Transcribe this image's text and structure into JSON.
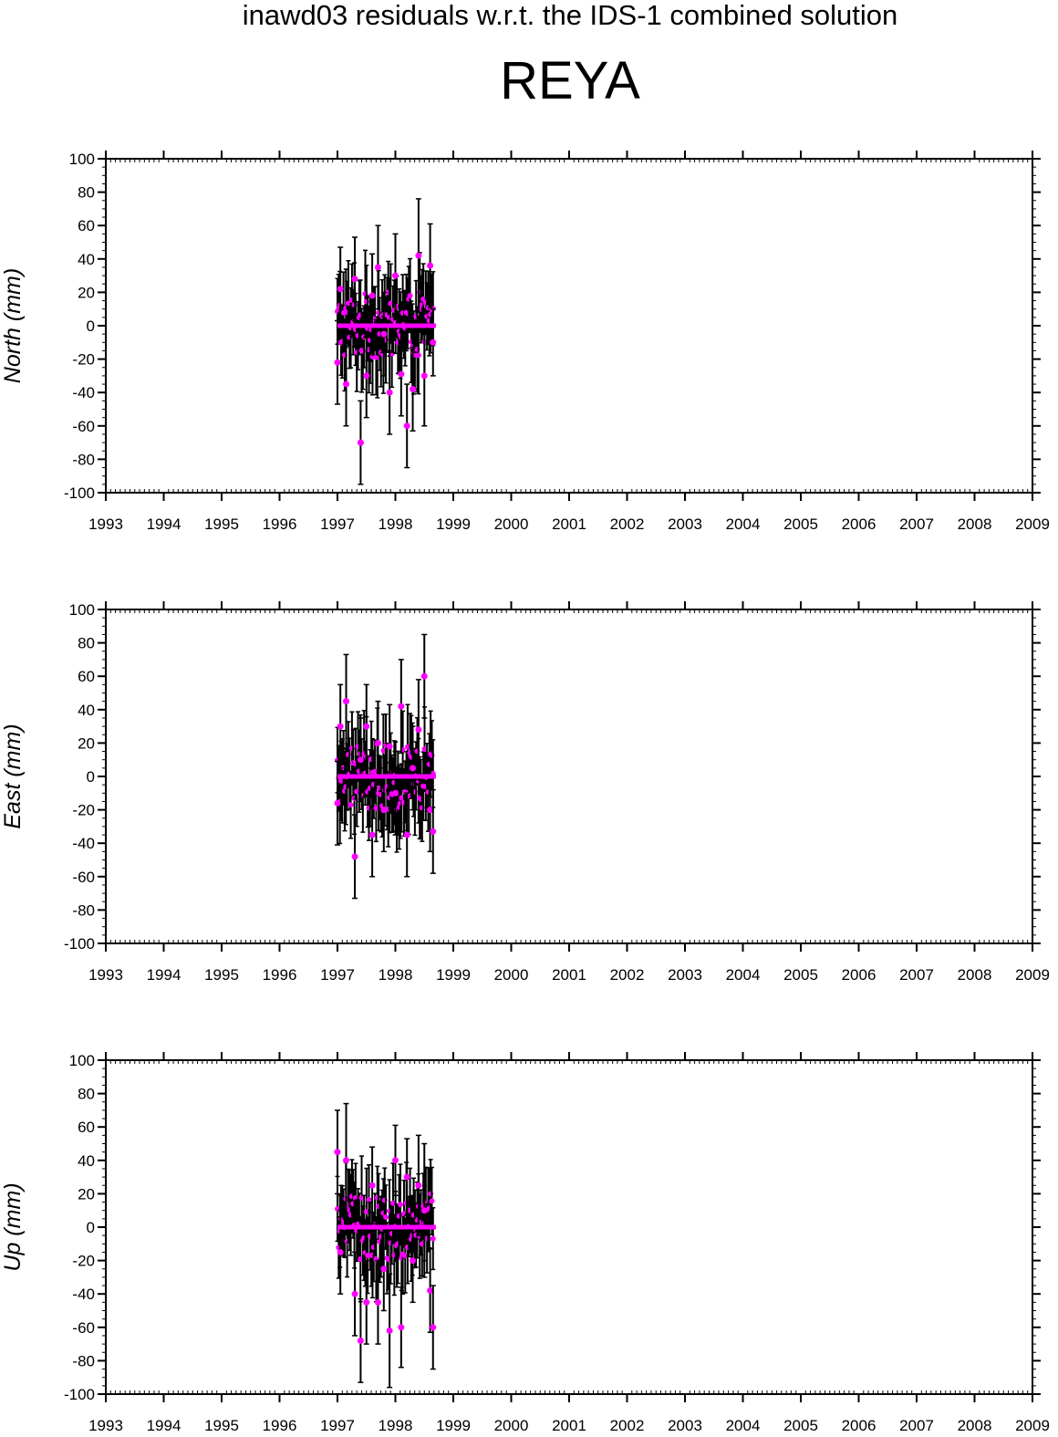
{
  "header": {
    "title": "inawd03 residuals w.r.t. the IDS-1 combined solution",
    "subtitle": "REYA"
  },
  "colors": {
    "points": "#ff00ff",
    "mean_line": "#ff00ff",
    "error_bars": "#000000",
    "axes": "#000000"
  },
  "chart_data": [
    {
      "type": "scatter",
      "ylabel": "North (mm)",
      "xlim": [
        1993,
        2009
      ],
      "ylim": [
        -100,
        100
      ],
      "xticks": [
        "1993",
        "1994",
        "1995",
        "1996",
        "1997",
        "1998",
        "1999",
        "2000",
        "2001",
        "2002",
        "2003",
        "2004",
        "2005",
        "2006",
        "2007",
        "2008",
        "2009"
      ],
      "yticks": [
        "100",
        "80",
        "60",
        "40",
        "20",
        "0",
        "-20",
        "-40",
        "-60",
        "-80",
        "-100"
      ],
      "mean_line": {
        "x": [
          1997.0,
          1998.7
        ],
        "y": 0
      },
      "series": [
        {
          "x": [
            1997.0,
            1997.05,
            1997.15,
            1997.3,
            1997.4,
            1997.5,
            1997.6,
            1997.7,
            1997.8,
            1997.9,
            1998.0,
            1998.1,
            1998.2,
            1998.3,
            1998.4,
            1998.5,
            1998.6,
            1998.65
          ],
          "y": [
            -22,
            22,
            -35,
            28,
            -70,
            -30,
            18,
            35,
            -5,
            -40,
            30,
            -29,
            -60,
            -38,
            42,
            -30,
            36,
            -10
          ],
          "err": [
            25,
            25,
            25,
            25,
            25,
            25,
            25,
            25,
            25,
            25,
            25,
            25,
            25,
            25,
            34,
            30,
            25,
            20
          ]
        }
      ]
    },
    {
      "type": "scatter",
      "ylabel": "East (mm)",
      "xlim": [
        1993,
        2009
      ],
      "ylim": [
        -100,
        100
      ],
      "xticks": [
        "1993",
        "1994",
        "1995",
        "1996",
        "1997",
        "1998",
        "1999",
        "2000",
        "2001",
        "2002",
        "2003",
        "2004",
        "2005",
        "2006",
        "2007",
        "2008",
        "2009"
      ],
      "yticks": [
        "100",
        "80",
        "60",
        "40",
        "20",
        "0",
        "-20",
        "-40",
        "-60",
        "-80",
        "-100"
      ],
      "mean_line": {
        "x": [
          1997.0,
          1998.7
        ],
        "y": 0
      },
      "series": [
        {
          "x": [
            1997.0,
            1997.05,
            1997.15,
            1997.3,
            1997.4,
            1997.5,
            1997.6,
            1997.7,
            1997.8,
            1997.9,
            1998.0,
            1998.1,
            1998.2,
            1998.3,
            1998.4,
            1998.5,
            1998.6,
            1998.65
          ],
          "y": [
            -16,
            30,
            45,
            -48,
            10,
            30,
            -35,
            20,
            -20,
            18,
            -10,
            42,
            -35,
            5,
            28,
            60,
            -20,
            -33
          ],
          "err": [
            25,
            25,
            28,
            25,
            25,
            25,
            25,
            25,
            25,
            25,
            25,
            28,
            25,
            25,
            30,
            25,
            25,
            25
          ]
        }
      ]
    },
    {
      "type": "scatter",
      "ylabel": "Up (mm)",
      "xlim": [
        1993,
        2009
      ],
      "ylim": [
        -100,
        100
      ],
      "xticks": [
        "1993",
        "1994",
        "1995",
        "1996",
        "1997",
        "1998",
        "1999",
        "2000",
        "2001",
        "2002",
        "2003",
        "2004",
        "2005",
        "2006",
        "2007",
        "2008",
        "2009"
      ],
      "yticks": [
        "100",
        "80",
        "60",
        "40",
        "20",
        "0",
        "-20",
        "-40",
        "-60",
        "-80",
        "-100"
      ],
      "mean_line": {
        "x": [
          1997.0,
          1998.7
        ],
        "y": 0
      },
      "series": [
        {
          "x": [
            1997.0,
            1997.05,
            1997.15,
            1997.3,
            1997.4,
            1997.5,
            1997.6,
            1997.7,
            1997.8,
            1997.9,
            1998.0,
            1998.1,
            1998.2,
            1998.3,
            1998.4,
            1998.5,
            1998.6,
            1998.65
          ],
          "y": [
            45,
            -15,
            40,
            -40,
            -68,
            -45,
            25,
            -45,
            -25,
            -62,
            40,
            -60,
            30,
            -20,
            25,
            10,
            -38,
            -60
          ],
          "err": [
            25,
            25,
            34,
            25,
            25,
            25,
            23,
            25,
            25,
            34,
            21,
            24,
            23,
            25,
            30,
            40,
            25,
            25
          ]
        }
      ]
    }
  ]
}
